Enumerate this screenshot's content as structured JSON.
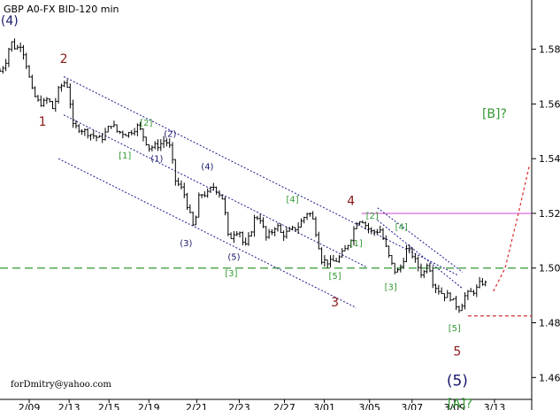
{
  "chart_data": {
    "type": "candlestick",
    "title": "GBP A0-FX BID-120 min",
    "credit": "forDmitry@yahoo.com",
    "xlim": [
      0,
      100
    ],
    "ylim": [
      1.452,
      1.598
    ],
    "y_ticks": [
      "1.46",
      "1.48",
      "1.50",
      "1.52",
      "1.54",
      "1.56",
      "1.58"
    ],
    "x_ticks": [
      {
        "label": "2/09",
        "x": 5.5
      },
      {
        "label": "2/13",
        "x": 13
      },
      {
        "label": "2/15",
        "x": 20.5
      },
      {
        "label": "2/19",
        "x": 28
      },
      {
        "label": "2/21",
        "x": 37
      },
      {
        "label": "2/23",
        "x": 45
      },
      {
        "label": "2/27",
        "x": 53.5
      },
      {
        "label": "3/01",
        "x": 61
      },
      {
        "label": "3/05",
        "x": 69.5
      },
      {
        "label": "3/07",
        "x": 77.5
      },
      {
        "label": "3/09",
        "x": 85.5
      },
      {
        "label": "3/13",
        "x": 93
      }
    ],
    "price_path": [
      [
        0,
        1.572
      ],
      [
        1,
        1.575
      ],
      [
        2,
        1.583
      ],
      [
        3,
        1.58
      ],
      [
        4,
        1.582
      ],
      [
        5,
        1.574
      ],
      [
        6,
        1.565
      ],
      [
        7,
        1.561
      ],
      [
        8,
        1.56
      ],
      [
        9,
        1.562
      ],
      [
        10,
        1.558
      ],
      [
        11,
        1.565
      ],
      [
        12,
        1.568
      ],
      [
        13,
        1.566
      ],
      [
        13.5,
        1.552
      ],
      [
        15,
        1.551
      ],
      [
        17,
        1.549
      ],
      [
        19,
        1.547
      ],
      [
        21,
        1.553
      ],
      [
        22,
        1.55
      ],
      [
        24,
        1.549
      ],
      [
        26,
        1.552
      ],
      [
        28,
        1.544
      ],
      [
        30,
        1.545
      ],
      [
        31,
        1.547
      ],
      [
        32,
        1.544
      ],
      [
        33,
        1.532
      ],
      [
        34.5,
        1.528
      ],
      [
        35.5,
        1.521
      ],
      [
        36.5,
        1.514
      ],
      [
        37.5,
        1.527
      ],
      [
        39,
        1.527
      ],
      [
        40,
        1.53
      ],
      [
        41,
        1.528
      ],
      [
        42,
        1.525
      ],
      [
        43,
        1.51
      ],
      [
        44,
        1.513
      ],
      [
        45,
        1.514
      ],
      [
        46,
        1.507
      ],
      [
        47,
        1.512
      ],
      [
        48,
        1.519
      ],
      [
        49,
        1.518
      ],
      [
        50,
        1.511
      ],
      [
        51,
        1.513
      ],
      [
        52,
        1.516
      ],
      [
        53,
        1.512
      ],
      [
        54,
        1.513
      ],
      [
        56,
        1.515
      ],
      [
        57,
        1.518
      ],
      [
        58,
        1.521
      ],
      [
        59,
        1.517
      ],
      [
        60.5,
        1.503
      ],
      [
        62,
        1.502
      ],
      [
        63.5,
        1.503
      ],
      [
        65,
        1.507
      ],
      [
        66,
        1.511
      ],
      [
        67,
        1.517
      ],
      [
        68,
        1.518
      ],
      [
        69,
        1.515
      ],
      [
        70,
        1.513
      ],
      [
        71.5,
        1.514
      ],
      [
        72.5,
        1.508
      ],
      [
        73.5,
        1.502
      ],
      [
        74.5,
        1.498
      ],
      [
        75.5,
        1.501
      ],
      [
        76.5,
        1.507
      ],
      [
        77.5,
        1.505
      ],
      [
        78.5,
        1.501
      ],
      [
        79.5,
        1.497
      ],
      [
        80.5,
        1.503
      ],
      [
        81.5,
        1.494
      ],
      [
        82.5,
        1.492
      ],
      [
        83.5,
        1.49
      ],
      [
        84.5,
        1.49
      ],
      [
        85.5,
        1.487
      ],
      [
        86.5,
        1.485
      ],
      [
        87.5,
        1.49
      ],
      [
        88.5,
        1.491
      ],
      [
        89.5,
        1.492
      ],
      [
        90.5,
        1.495
      ],
      [
        91.5,
        1.494
      ]
    ],
    "horizontal_lines": [
      {
        "y": 1.5,
        "style": "dashed",
        "color": "#339933"
      },
      {
        "y": 1.52,
        "style": "solid",
        "color": "#cc44cc",
        "from_x": 68
      },
      {
        "y": 1.4825,
        "style": "dashed",
        "color": "#cc3333",
        "from_x": 88
      }
    ],
    "channel_lines": [
      {
        "from": [
          12,
          1.57
        ],
        "to": [
          86,
          1.4975
        ]
      },
      {
        "from": [
          12,
          1.556
        ],
        "to": [
          69,
          1.5003
        ]
      },
      {
        "from": [
          11,
          1.54
        ],
        "to": [
          67,
          1.4855
        ]
      },
      {
        "from": [
          71,
          1.522
        ],
        "to": [
          87,
          1.4985
        ]
      },
      {
        "from": [
          71,
          1.5175
        ],
        "to": [
          87,
          1.4925
        ]
      }
    ],
    "forecast_path": [
      [
        92.8,
        1.4915
      ],
      [
        95,
        1.5
      ],
      [
        97.5,
        1.52
      ],
      [
        99.5,
        1.537
      ]
    ],
    "forecast_color": "#dd3333",
    "wave_labels": [
      {
        "text": "(4)",
        "x": 1.8,
        "y": 1.589,
        "color": "#1a1a6e",
        "size": "large"
      },
      {
        "text": "2",
        "x": 12,
        "y": 1.575,
        "color": "#8b1a1a",
        "size": "large"
      },
      {
        "text": "1",
        "x": 8,
        "y": 1.552,
        "color": "#8b1a1a",
        "size": "large"
      },
      {
        "text": "[2]",
        "x": 27.5,
        "y": 1.552,
        "color": "#339933",
        "size": "small"
      },
      {
        "text": "(2)",
        "x": 32,
        "y": 1.548,
        "color": "#1a1a6e",
        "size": "small"
      },
      {
        "text": "[1]",
        "x": 23.5,
        "y": 1.54,
        "color": "#339933",
        "size": "small"
      },
      {
        "text": "(1)",
        "x": 29.5,
        "y": 1.539,
        "color": "#1a1a6e",
        "size": "small"
      },
      {
        "text": "(4)",
        "x": 39,
        "y": 1.536,
        "color": "#1a1a6e",
        "size": "small"
      },
      {
        "text": "(3)",
        "x": 35,
        "y": 1.508,
        "color": "#1a1a6e",
        "size": "small"
      },
      {
        "text": "(5)",
        "x": 44,
        "y": 1.503,
        "color": "#1a1a6e",
        "size": "small"
      },
      {
        "text": "[3]",
        "x": 43.5,
        "y": 1.497,
        "color": "#339933",
        "size": "small"
      },
      {
        "text": "[4]",
        "x": 55,
        "y": 1.524,
        "color": "#339933",
        "size": "small"
      },
      {
        "text": "4",
        "x": 66,
        "y": 1.523,
        "color": "#8b1a1a",
        "size": "large"
      },
      {
        "text": "[2]",
        "x": 70,
        "y": 1.518,
        "color": "#339933",
        "size": "small"
      },
      {
        "text": "[1]",
        "x": 67,
        "y": 1.508,
        "color": "#339933",
        "size": "small"
      },
      {
        "text": "[4]",
        "x": 75.5,
        "y": 1.514,
        "color": "#339933",
        "size": "small"
      },
      {
        "text": "[5]",
        "x": 63,
        "y": 1.496,
        "color": "#339933",
        "size": "small"
      },
      {
        "text": "[3]",
        "x": 73.5,
        "y": 1.492,
        "color": "#339933",
        "size": "small"
      },
      {
        "text": "3",
        "x": 63,
        "y": 1.486,
        "color": "#8b1a1a",
        "size": "large"
      },
      {
        "text": "[B]?",
        "x": 93,
        "y": 1.555,
        "color": "#339933",
        "size": "large"
      },
      {
        "text": "[5]",
        "x": 85.5,
        "y": 1.477,
        "color": "#339933",
        "size": "small"
      },
      {
        "text": "5",
        "x": 86,
        "y": 1.468,
        "color": "#8b1a1a",
        "size": "large"
      },
      {
        "text": "(5)",
        "x": 86,
        "y": 1.457,
        "color": "#1a1a6e",
        "size": "xlarge"
      },
      {
        "text": "[A]?",
        "x": 86.5,
        "y": 1.449,
        "color": "#339933",
        "size": "large"
      }
    ]
  }
}
